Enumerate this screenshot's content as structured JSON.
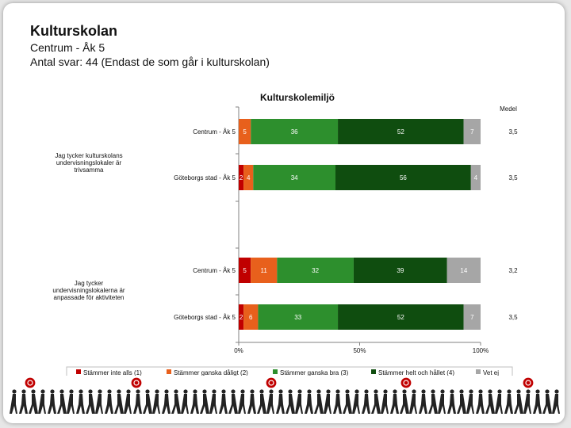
{
  "header": {
    "title": "Kulturskolan",
    "subtitle": "Centrum - Åk 5",
    "responses": "Antal svar: 44 (Endast de som går i kulturskolan)"
  },
  "chart_data": {
    "type": "bar",
    "stacked": true,
    "orientation": "horizontal",
    "title": "Kulturskolemiljö",
    "medel_label": "Medel",
    "xlim": [
      0,
      100
    ],
    "x_ticks": [
      "0%",
      "50%",
      "100%"
    ],
    "groups": [
      {
        "question": "Jag tycker kulturskolans undervisningslokaler är trivsamma",
        "bars": [
          {
            "category": "Centrum - Åk 5",
            "labels": [
              "0",
              "5",
              "36",
              "52",
              "7"
            ],
            "values": [
              0,
              5,
              36,
              52,
              7
            ],
            "medel": "3,5"
          },
          {
            "category": "Göteborgs stad - Åk 5",
            "labels": [
              "2",
              "4",
              "34",
              "56",
              "4"
            ],
            "values": [
              2,
              4,
              34,
              56,
              4
            ],
            "medel": "3,5"
          }
        ]
      },
      {
        "question": "Jag tycker undervisningslokalerna är anpassade för aktiviteten",
        "bars": [
          {
            "category": "Centrum - Åk 5",
            "labels": [
              "5",
              "11",
              "32",
              "39",
              "14"
            ],
            "values": [
              5,
              11,
              32,
              39,
              14
            ],
            "medel": "3,2"
          },
          {
            "category": "Göteborgs stad - Åk 5",
            "labels": [
              "2",
              "6",
              "33",
              "52",
              "7"
            ],
            "values": [
              2,
              6,
              33,
              52,
              7
            ],
            "medel": "3,5"
          }
        ]
      }
    ],
    "series": [
      {
        "name": "Stämmer inte alls (1)",
        "color": "#c00000"
      },
      {
        "name": "Stämmer ganska dåligt (2)",
        "color": "#e8601c"
      },
      {
        "name": "Stämmer ganska bra (3)",
        "color": "#2d8f2d"
      },
      {
        "name": "Stämmer helt och hållet (4)",
        "color": "#0f4d0f"
      },
      {
        "name": "Vet ej",
        "color": "#a6a6a6"
      }
    ],
    "legend_position": "bottom"
  }
}
